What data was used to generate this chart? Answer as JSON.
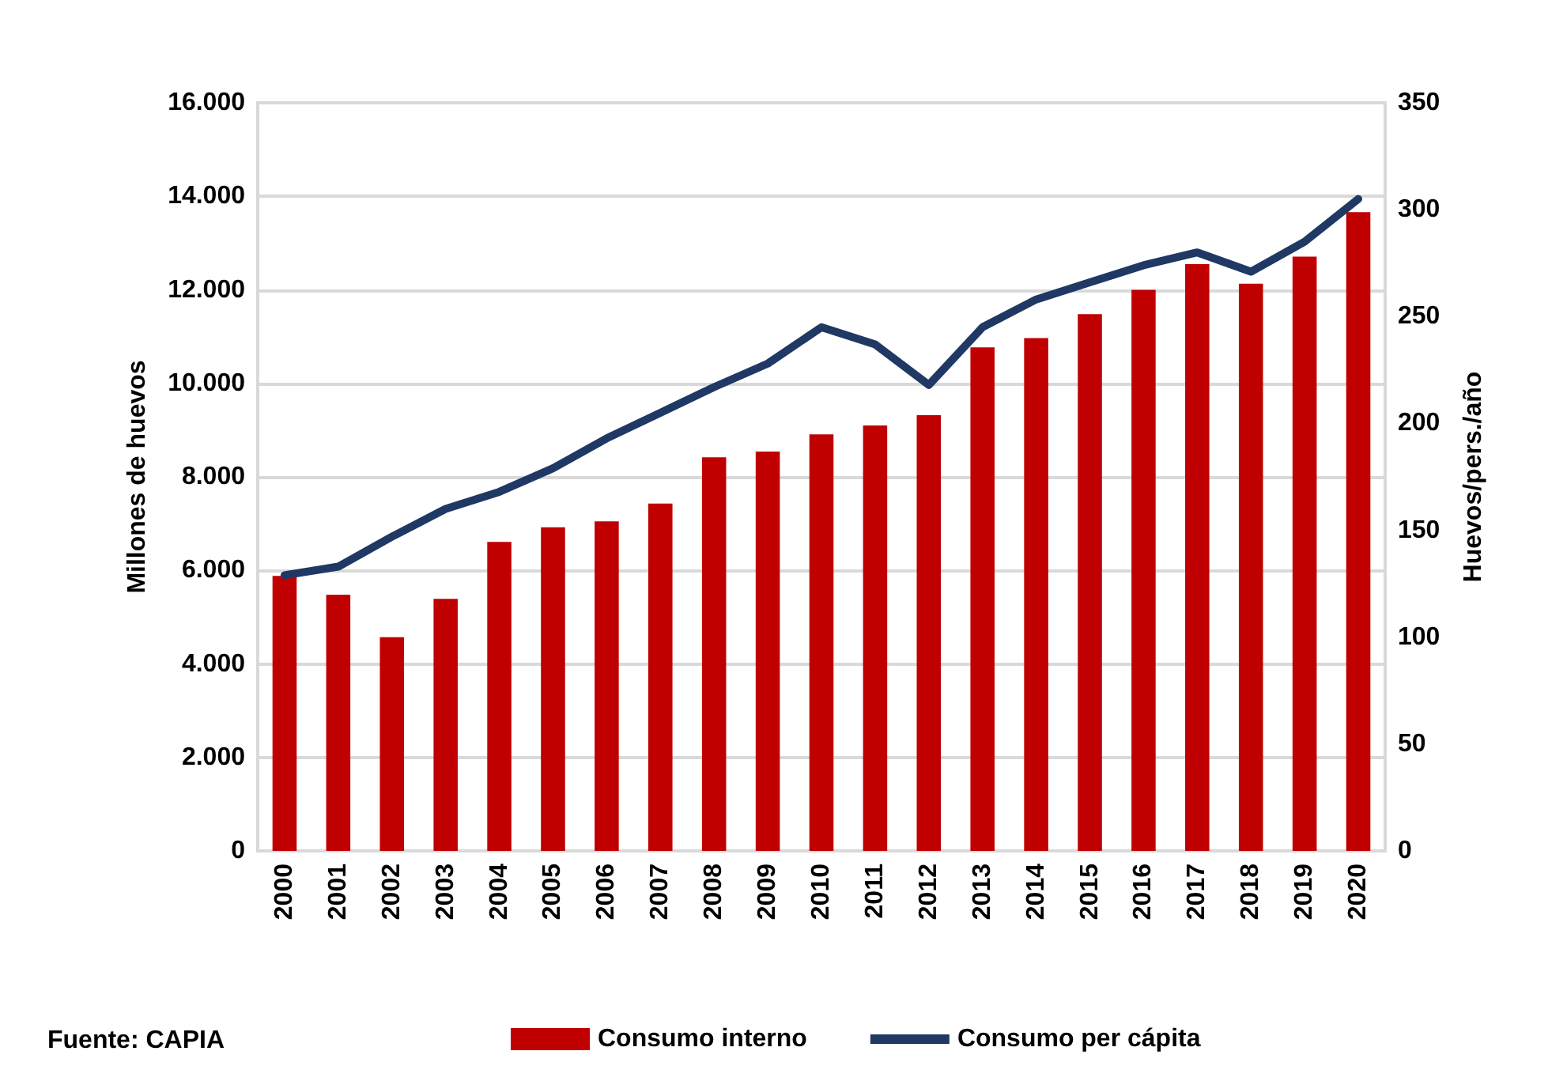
{
  "chart_data": {
    "type": "bar",
    "categories": [
      "2000",
      "2001",
      "2002",
      "2003",
      "2004",
      "2005",
      "2006",
      "2007",
      "2008",
      "2009",
      "2010",
      "2011",
      "2012",
      "2013",
      "2014",
      "2015",
      "2016",
      "2017",
      "2018",
      "2019",
      "2020"
    ],
    "series": [
      {
        "name": "Consumo interno",
        "color": "#c00000",
        "values": [
          5880,
          5480,
          4570,
          5390,
          6610,
          6920,
          7050,
          7430,
          8420,
          8540,
          8910,
          9100,
          9320,
          10770,
          10970,
          11480,
          12000,
          12550,
          12130,
          12710,
          13660
        ]
      },
      {
        "name": "Consumo per cápita",
        "type": "line",
        "axis": "y2",
        "color": "#1f3864",
        "values": [
          129,
          133,
          147,
          160,
          168,
          179,
          193,
          205,
          217,
          228,
          245,
          237,
          218,
          245,
          258,
          266,
          274,
          280,
          271,
          285,
          305
        ]
      }
    ],
    "ylabel": "Millones de huevos",
    "y2label": "Huevos/pers./año",
    "ylim": [
      0,
      16000
    ],
    "yticks": [
      0,
      {
        "value": 2000,
        "label": "2.000"
      },
      {
        "value": 4000,
        "label": "4.000"
      },
      {
        "value": 6000,
        "label": "6.000"
      },
      {
        "value": 8000,
        "label": "8.000"
      },
      {
        "value": 10000,
        "label": "10.000"
      },
      {
        "value": 12000,
        "label": "12.000"
      },
      {
        "value": 14000,
        "label": "14.000"
      },
      {
        "value": 16000,
        "label": "16.000"
      }
    ],
    "y2lim": [
      0,
      350
    ],
    "y2ticks": [
      0,
      50,
      100,
      150,
      200,
      250,
      300,
      350
    ],
    "grid": "y",
    "legend": "bottom",
    "marker": "none",
    "line_style": "solid",
    "annotations": [
      "Fuente: CAPIA"
    ]
  }
}
